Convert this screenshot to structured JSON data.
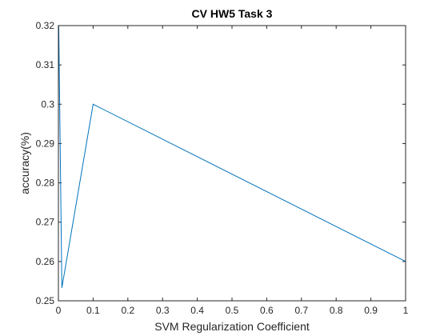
{
  "chart_data": {
    "type": "line",
    "title": "CV HW5 Task 3",
    "xlabel": "SVM Regularization Coefficient",
    "ylabel": "accuracy(%)",
    "xlim": [
      0,
      1
    ],
    "ylim": [
      0.25,
      0.32
    ],
    "x_ticks": [
      0,
      0.1,
      0.2,
      0.3,
      0.4,
      0.5,
      0.6,
      0.7,
      0.8,
      0.9,
      1
    ],
    "x_tick_labels": [
      "0",
      "0.1",
      "0.2",
      "0.3",
      "0.4",
      "0.5",
      "0.6",
      "0.7",
      "0.8",
      "0.9",
      "1"
    ],
    "y_ticks": [
      0.25,
      0.26,
      0.27,
      0.28,
      0.29,
      0.3,
      0.31,
      0.32
    ],
    "y_tick_labels": [
      "0.25",
      "0.26",
      "0.27",
      "0.28",
      "0.29",
      "0.3",
      "0.31",
      "0.32"
    ],
    "grid": false,
    "box": true,
    "series": [
      {
        "color": "#0072bd",
        "x": [
          0.0001,
          0.001,
          0.01,
          0.1,
          1
        ],
        "y": [
          0.32,
          0.32,
          0.2533,
          0.3,
          0.26
        ]
      }
    ]
  }
}
